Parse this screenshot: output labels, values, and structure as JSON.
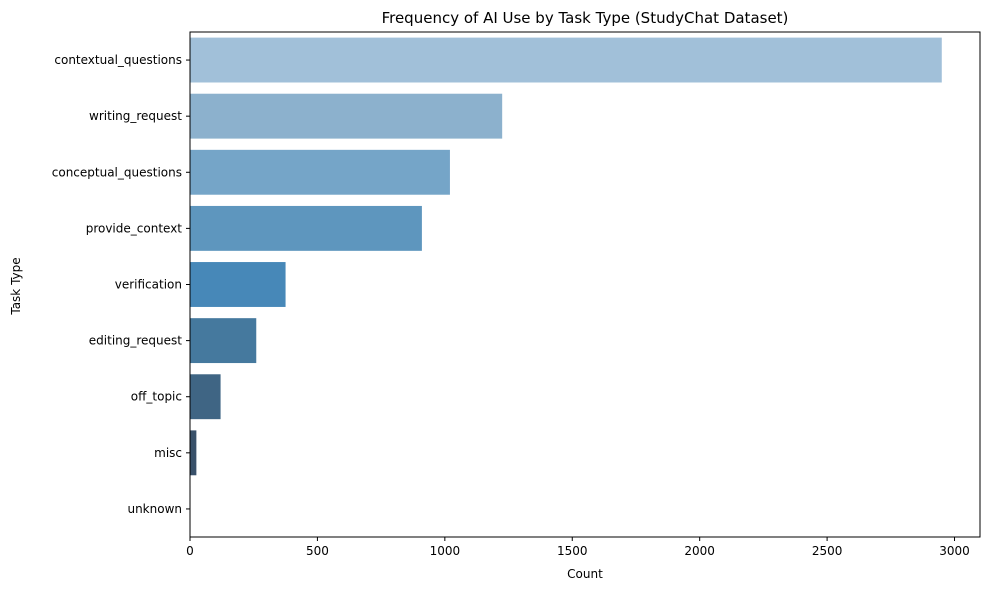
{
  "chart_data": {
    "type": "bar",
    "orientation": "horizontal",
    "title": "Frequency of AI Use by Task Type (StudyChat Dataset)",
    "xlabel": "Count",
    "ylabel": "Task Type",
    "xlim": [
      0,
      3100
    ],
    "xticks": [
      0,
      500,
      1000,
      1500,
      2000,
      2500,
      3000
    ],
    "grid": false,
    "categories": [
      "contextual_questions",
      "writing_request",
      "conceptual_questions",
      "provide_context",
      "verification",
      "editing_request",
      "off_topic",
      "misc",
      "unknown"
    ],
    "values": [
      2950,
      1225,
      1020,
      910,
      375,
      260,
      120,
      25,
      2
    ],
    "colors": [
      "#a1c0d9",
      "#8cb1cd",
      "#75a5c8",
      "#5e96be",
      "#4788b8",
      "#45799e",
      "#3f6584",
      "#39516a",
      "#324253"
    ]
  }
}
